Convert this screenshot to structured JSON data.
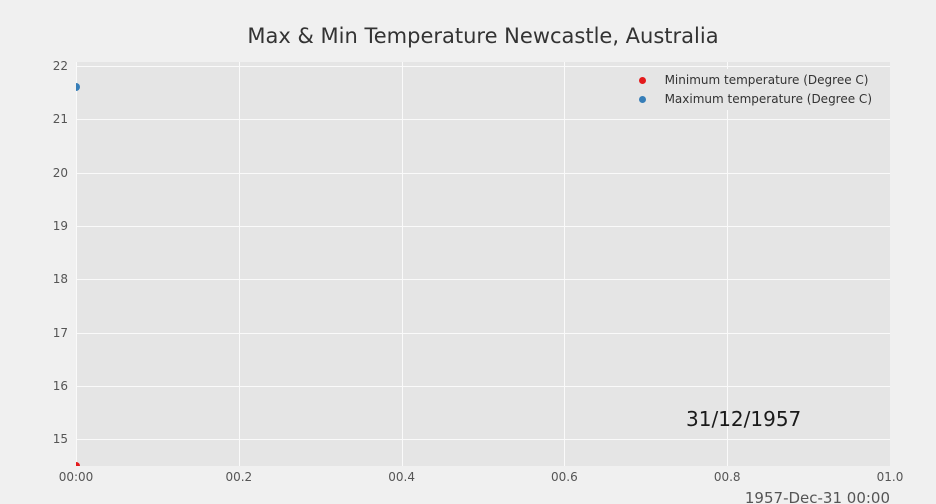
{
  "chart_data": {
    "type": "scatter",
    "title": "Max & Min Temperature Newcastle, Australia",
    "series": [
      {
        "name": "Minimum temperature (Degree C)",
        "color": "#e41a1c",
        "points": [
          {
            "x": 0,
            "y": 14.5
          }
        ]
      },
      {
        "name": "Maximum temperature (Degree C)",
        "color": "#377eb8",
        "points": [
          {
            "x": 0,
            "y": 21.6
          }
        ]
      }
    ],
    "xlim": [
      0,
      1.0
    ],
    "ylim": [
      14.5,
      22.075
    ],
    "xticks": [
      0,
      0.2,
      0.4,
      0.6,
      0.8,
      1.0
    ],
    "xtick_labels": [
      "00:00",
      "00.2",
      "00.4",
      "00.6",
      "00.8",
      "01.0"
    ],
    "yticks": [
      15,
      16,
      17,
      18,
      19,
      20,
      21,
      22
    ],
    "x_offset_label": "1957-Dec-31 00:00",
    "annotation": "31/12/1957",
    "legend_position": "upper right",
    "grid": true,
    "plot_bg": "#e5e5e5",
    "figure_bg": "#f0f0f0",
    "grid_color": "#fafafa"
  }
}
